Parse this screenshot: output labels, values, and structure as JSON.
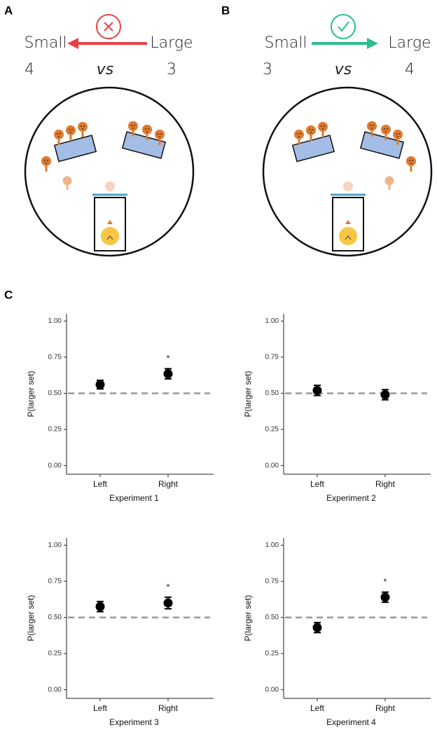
{
  "panels": [
    {
      "label": "A",
      "left": "Small",
      "right": "Large",
      "left_count": 4,
      "vs": "vs",
      "right_count": 3
    },
    {
      "label": "B",
      "left": "Small",
      "right": "Large",
      "left_count": 3,
      "vs": "vs",
      "right_count": 4
    }
  ],
  "panel_c_label": "C",
  "chart_data": [
    {
      "type": "dot_errorbar",
      "x_label": "Experiment 1",
      "y_label": "P(larger set)",
      "categories": [
        "Left",
        "Right"
      ],
      "values": [
        0.56,
        0.635
      ],
      "errors": [
        0.03,
        0.035
      ],
      "significance": [
        null,
        "*"
      ],
      "reference_line": 0.5,
      "color": "#000000",
      "ylim": [
        -0.06,
        1.05
      ],
      "yticks": [
        {
          "value": 0,
          "label": "0.00"
        },
        {
          "value": 0.25,
          "label": "0.25"
        },
        {
          "value": 0.5,
          "label": "0.50"
        },
        {
          "value": 0.75,
          "label": "0.75"
        },
        {
          "value": 1,
          "label": "1.00"
        }
      ]
    },
    {
      "type": "dot_errorbar",
      "x_label": "Experiment 2",
      "y_label": "P(larger set)",
      "categories": [
        "Left",
        "Right"
      ],
      "values": [
        0.52,
        0.49
      ],
      "errors": [
        0.035,
        0.035
      ],
      "significance": [
        null,
        null
      ],
      "reference_line": 0.5,
      "color": "#000000",
      "ylim": [
        -0.06,
        1.05
      ],
      "yticks": [
        {
          "value": 0,
          "label": "0.00"
        },
        {
          "value": 0.25,
          "label": "0.25"
        },
        {
          "value": 0.5,
          "label": "0.50"
        },
        {
          "value": 0.75,
          "label": "0.75"
        },
        {
          "value": 1,
          "label": "1.00"
        }
      ]
    },
    {
      "type": "dot_errorbar",
      "x_label": "Experiment 3",
      "y_label": "P(larger set)",
      "categories": [
        "Left",
        "Right"
      ],
      "values": [
        0.575,
        0.6
      ],
      "errors": [
        0.035,
        0.04
      ],
      "significance": [
        null,
        "*"
      ],
      "reference_line": 0.5,
      "color": "#000000",
      "ylim": [
        -0.06,
        1.05
      ],
      "yticks": [
        {
          "value": 0,
          "label": "0.00"
        },
        {
          "value": 0.25,
          "label": "0.25"
        },
        {
          "value": 0.5,
          "label": "0.50"
        },
        {
          "value": 0.75,
          "label": "0.75"
        },
        {
          "value": 1,
          "label": "1.00"
        }
      ]
    },
    {
      "type": "dot_errorbar",
      "x_label": "Experiment 4",
      "y_label": "P(larger set)",
      "categories": [
        "Left",
        "Right"
      ],
      "values": [
        0.43,
        0.64
      ],
      "errors": [
        0.035,
        0.035
      ],
      "significance": [
        null,
        "*"
      ],
      "reference_line": 0.5,
      "color": "#000000",
      "ylim": [
        -0.06,
        1.05
      ],
      "yticks": [
        {
          "value": 0,
          "label": "0.00"
        },
        {
          "value": 0.25,
          "label": "0.25"
        },
        {
          "value": 0.5,
          "label": "0.50"
        },
        {
          "value": 0.75,
          "label": "0.75"
        },
        {
          "value": 1,
          "label": "1.00"
        }
      ]
    }
  ]
}
